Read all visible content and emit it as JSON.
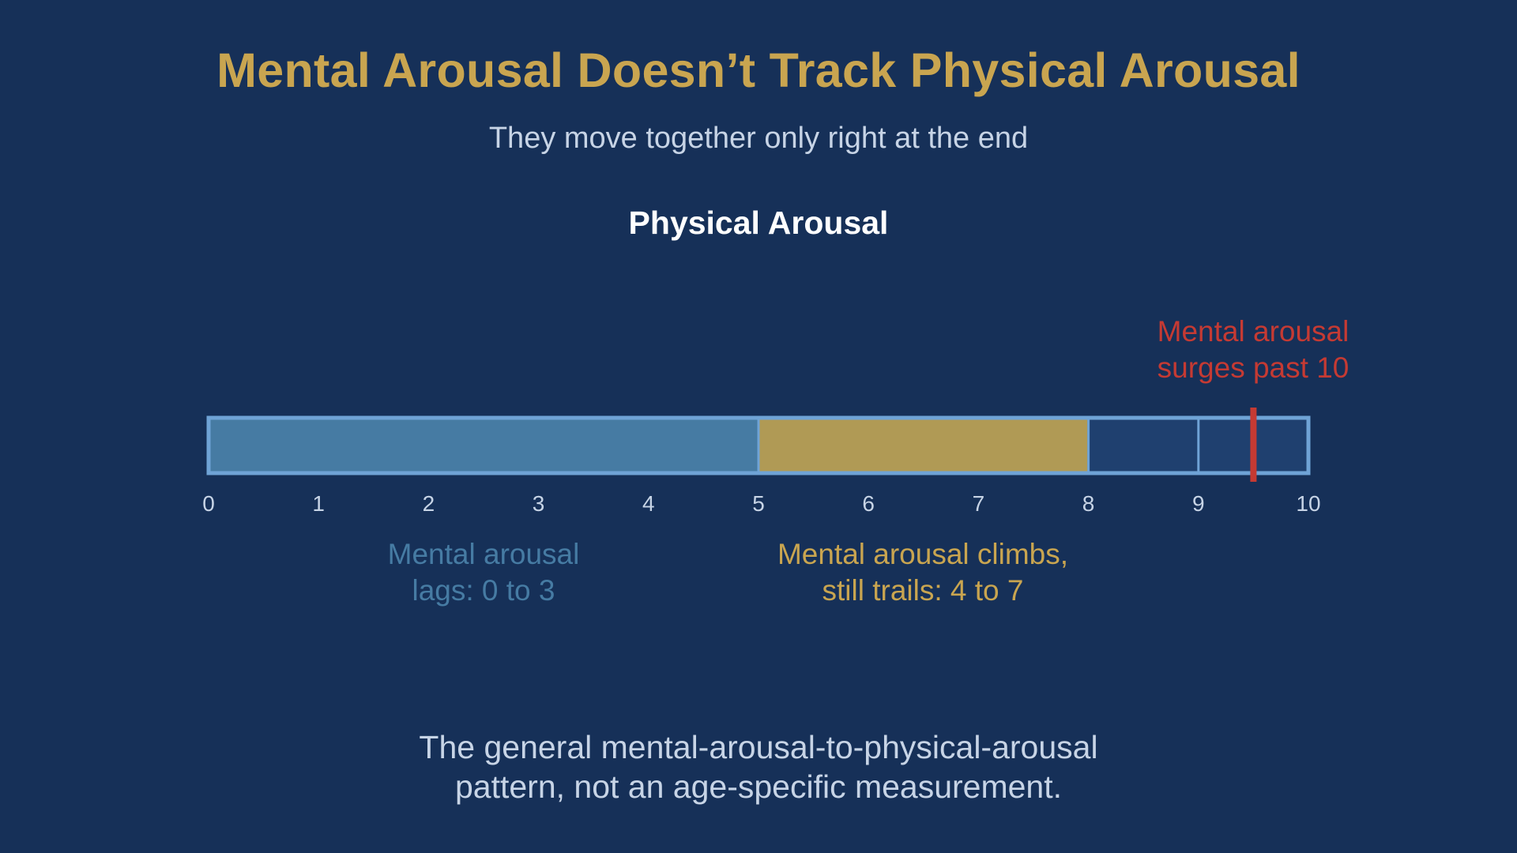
{
  "header": {
    "title": "Mental Arousal Doesn’t Track Physical Arousal",
    "subtitle": "They move together only right at the end"
  },
  "scale": {
    "axis_title": "Physical Arousal",
    "min": 0,
    "max": 10,
    "ticks": [
      "0",
      "1",
      "2",
      "3",
      "4",
      "5",
      "6",
      "7",
      "8",
      "9",
      "10"
    ],
    "segments": [
      {
        "from": 0,
        "to": 5,
        "color": "#467ba3"
      },
      {
        "from": 5,
        "to": 8,
        "color": "#b09a55"
      },
      {
        "from": 8,
        "to": 9,
        "color": "#1f406f"
      },
      {
        "from": 9,
        "to": 10,
        "color": "#1f406f"
      }
    ],
    "marker": {
      "value": 9.5,
      "color": "#c53a33"
    },
    "frame_color": "#6fa3d6",
    "tick_color": "#c7d4e6"
  },
  "annotations": {
    "low": {
      "line1": "Mental arousal",
      "line2": "lags: 0 to 3"
    },
    "mid": {
      "line1": "Mental arousal climbs,",
      "line2": "still trails: 4 to 7"
    },
    "peak": {
      "line1": "Mental arousal",
      "line2": "surges past 10"
    }
  },
  "footnote": {
    "line1": "The general mental-arousal-to-physical-arousal",
    "line2": "pattern, not an age-specific measurement."
  },
  "colors": {
    "background": "#163058",
    "title": "#c9a550",
    "subtitle": "#c7d4e6",
    "axis_title": "#ffffff",
    "low": "#467ba3",
    "mid": "#c9a550",
    "peak": "#c53a33"
  }
}
